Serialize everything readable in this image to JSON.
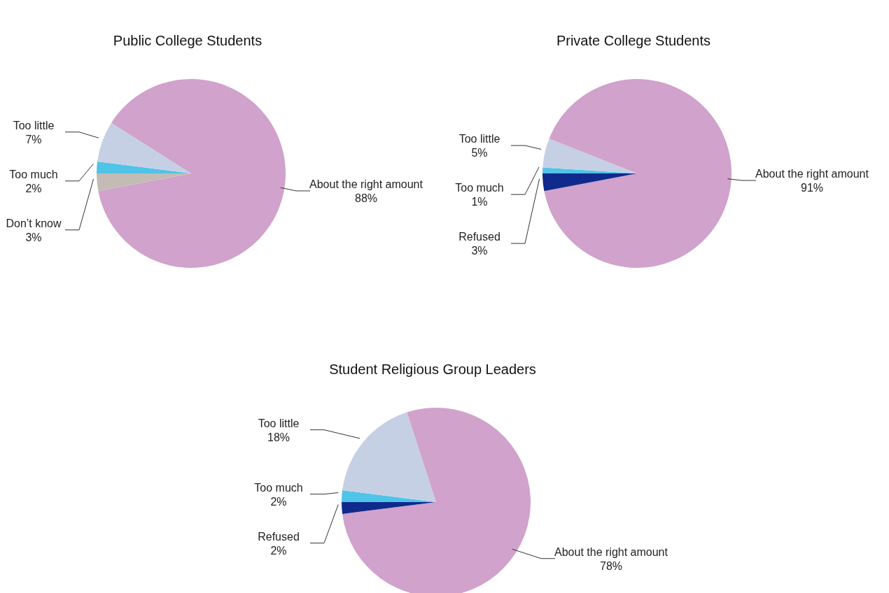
{
  "chart_data": [
    {
      "type": "pie",
      "title": "Public College Students",
      "categories": [
        "Too much",
        "Too little",
        "About the right amount",
        "Don’t know"
      ],
      "values": [
        2,
        7,
        88,
        3
      ],
      "value_labels": [
        "2%",
        "7%",
        "88%",
        "3%"
      ],
      "colors": [
        "#4fc3e8",
        "#c6d0e4",
        "#d0a2cc",
        "#c4bcb4"
      ]
    },
    {
      "type": "pie",
      "title": "Private College Students",
      "categories": [
        "Too much",
        "Too little",
        "About the right amount",
        "Refused"
      ],
      "values": [
        1,
        5,
        91,
        3
      ],
      "value_labels": [
        "1%",
        "5%",
        "91%",
        "3%"
      ],
      "colors": [
        "#4fc3e8",
        "#c6d0e4",
        "#d0a2cc",
        "#0f2a8c"
      ]
    },
    {
      "type": "pie",
      "title": "Student Religious Group Leaders",
      "categories": [
        "Too much",
        "Too little",
        "About the right amount",
        "Refused"
      ],
      "values": [
        2,
        18,
        78,
        2
      ],
      "value_labels": [
        "2%",
        "18%",
        "78%",
        "2%"
      ],
      "colors": [
        "#4fc3e8",
        "#c6d0e4",
        "#d0a2cc",
        "#0f2a8c"
      ]
    }
  ]
}
